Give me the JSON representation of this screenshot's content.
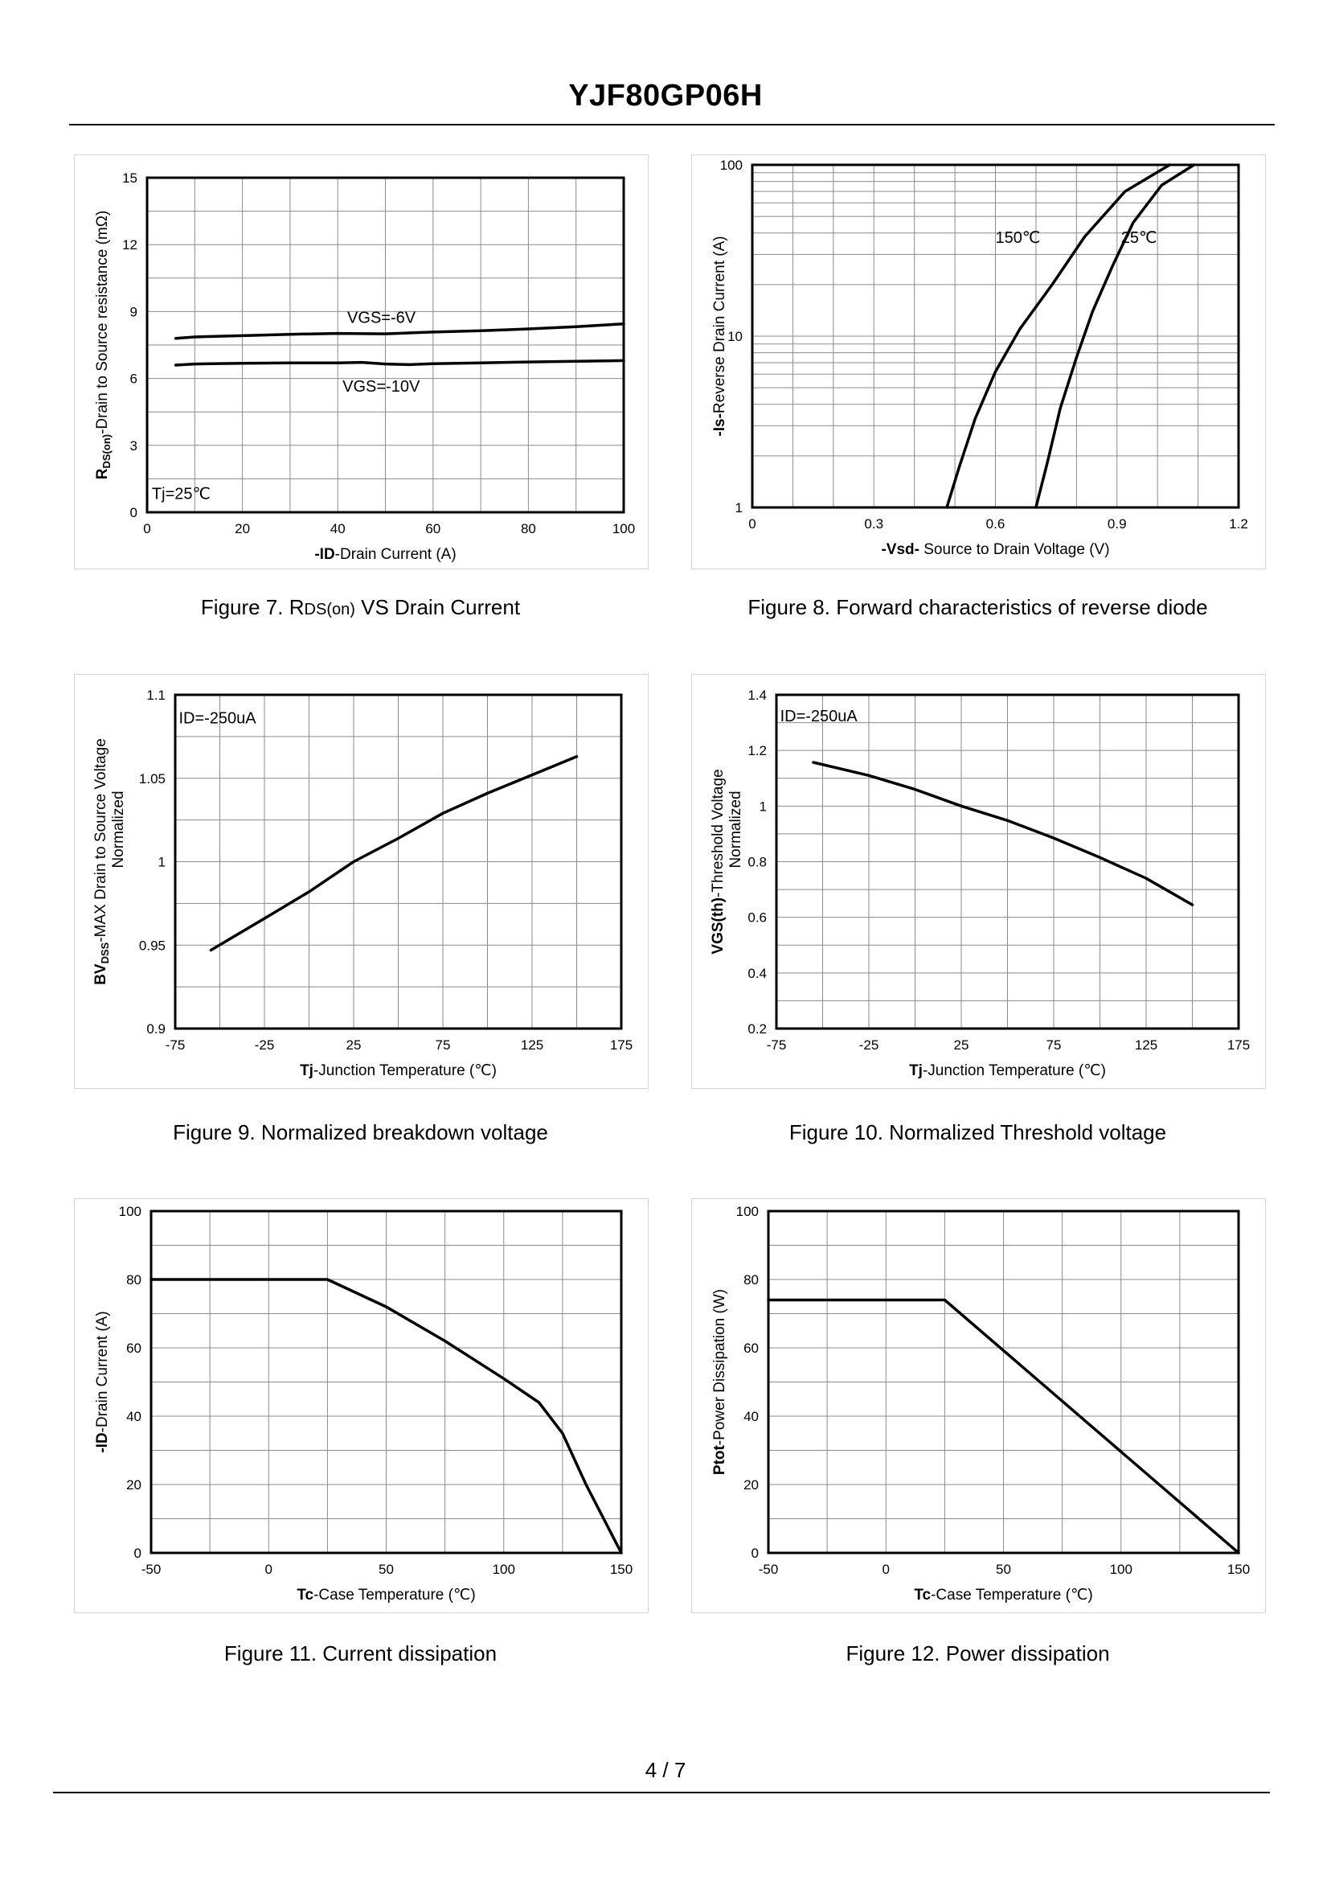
{
  "document": {
    "title": "YJF80GP06H",
    "page": "4 / 7"
  },
  "chart_data": [
    {
      "id": "fig7",
      "type": "line",
      "caption": [
        "Figure 7.  R",
        "DS(on)",
        " VS Drain Current"
      ],
      "xlabel_bold": "-ID",
      "xlabel": "-Drain Current  (A)",
      "ylabel_bold": "R",
      "ylabel_sub": "DS(on)",
      "ylabel": "-Drain to Source resistance (mΩ)",
      "xlim": [
        0,
        100
      ],
      "ylim": [
        0,
        15
      ],
      "xticks": [
        0,
        20,
        40,
        60,
        80,
        100
      ],
      "yticks": [
        0,
        3,
        6,
        9,
        12,
        15
      ],
      "xgrid": [
        0,
        10,
        20,
        30,
        40,
        50,
        60,
        70,
        80,
        90,
        100
      ],
      "ygrid": [
        0,
        1.5,
        3,
        4.5,
        6,
        7.5,
        9,
        10.5,
        12,
        13.5,
        15
      ],
      "series": [
        {
          "name": "VGS=-6V",
          "x": [
            6,
            10,
            20,
            30,
            40,
            50,
            60,
            70,
            80,
            90,
            100
          ],
          "y": [
            7.8,
            7.86,
            7.92,
            7.98,
            8.02,
            8.0,
            8.08,
            8.14,
            8.22,
            8.32,
            8.45
          ]
        },
        {
          "name": "VGS=-10V",
          "x": [
            6,
            10,
            20,
            30,
            40,
            45,
            50,
            55,
            60,
            70,
            80,
            90,
            100
          ],
          "y": [
            6.6,
            6.65,
            6.68,
            6.7,
            6.7,
            6.72,
            6.65,
            6.62,
            6.66,
            6.7,
            6.74,
            6.77,
            6.8
          ]
        }
      ],
      "annotations": [
        {
          "text": "VGS=-6V",
          "x": 42,
          "y": 8.5
        },
        {
          "text": "VGS=-10V",
          "x": 41,
          "y": 5.4
        },
        {
          "text": "Tj=25℃",
          "x": 1,
          "y": 0.6
        }
      ]
    },
    {
      "id": "fig8",
      "type": "line",
      "yscale": "log",
      "caption": [
        "Figure 8.  Forward characteristics of reverse diode",
        "",
        ""
      ],
      "xlabel_bold": "-Vsd-",
      "xlabel": " Source to Drain Voltage (V)",
      "ylabel_bold": "-Is-",
      "ylabel_sub": "",
      "ylabel": "Reverse  Drain Current (A)",
      "xlim": [
        0,
        1.2
      ],
      "ylim": [
        1,
        100
      ],
      "xticks": [
        0,
        0.3,
        0.6,
        0.9,
        1.2
      ],
      "yticks": [
        1,
        10,
        100
      ],
      "xgrid": [
        0,
        0.1,
        0.2,
        0.3,
        0.4,
        0.5,
        0.6,
        0.7,
        0.8,
        0.9,
        1.0,
        1.1,
        1.2
      ],
      "ygrid": [
        1,
        2,
        3,
        4,
        5,
        6,
        7,
        8,
        9,
        10,
        20,
        30,
        40,
        50,
        60,
        70,
        80,
        90,
        100
      ],
      "series": [
        {
          "name": "150℃",
          "x": [
            0.48,
            0.51,
            0.55,
            0.6,
            0.66,
            0.74,
            0.82,
            0.92,
            1.03
          ],
          "y": [
            1,
            1.7,
            3.3,
            6.2,
            11,
            20,
            38,
            70,
            100
          ]
        },
        {
          "name": "25℃",
          "x": [
            0.7,
            0.73,
            0.76,
            0.8,
            0.84,
            0.89,
            0.94,
            1.01,
            1.09
          ],
          "y": [
            1,
            1.9,
            3.8,
            7.5,
            14,
            26,
            46,
            76,
            100
          ]
        }
      ],
      "annotations": [
        {
          "text": "150℃",
          "x": 0.6,
          "y": 35
        },
        {
          "text": "25℃",
          "x": 0.91,
          "y": 35
        }
      ]
    },
    {
      "id": "fig9",
      "type": "line",
      "caption": [
        "Figure 9.  Normalized breakdown voltage",
        "",
        ""
      ],
      "xlabel_bold": "Tj",
      "xlabel": "-Junction  Temperature  (℃)",
      "ylabel_bold": "BV",
      "ylabel_sub": "DSS",
      "ylabel": "-MAX Drain to Source Voltage",
      "ylabel2": "Normalized",
      "xlim": [
        -75,
        175
      ],
      "ylim": [
        0.9,
        1.1
      ],
      "xticks": [
        -75,
        -25,
        25,
        75,
        125,
        175
      ],
      "yticks": [
        0.9,
        0.95,
        1,
        1.05,
        1.1
      ],
      "xgrid": [
        -75,
        -50,
        -25,
        0,
        25,
        50,
        75,
        100,
        125,
        150,
        175
      ],
      "ygrid": [
        0.9,
        0.925,
        0.95,
        0.975,
        1.0,
        1.025,
        1.05,
        1.075,
        1.1
      ],
      "series": [
        {
          "name": "BVDSS",
          "x": [
            -55,
            -25,
            0,
            25,
            50,
            75,
            100,
            125,
            150
          ],
          "y": [
            0.947,
            0.966,
            0.982,
            1.0,
            1.014,
            1.029,
            1.041,
            1.052,
            1.063
          ]
        }
      ],
      "annotations": [
        {
          "text": "ID=-250uA",
          "x": -73,
          "y": 1.083
        }
      ]
    },
    {
      "id": "fig10",
      "type": "line",
      "caption": [
        "Figure 10.  Normalized Threshold voltage",
        "",
        ""
      ],
      "xlabel_bold": "Tj",
      "xlabel": "-Junction  Temperature  (℃)",
      "ylabel_bold": "VGS(th)",
      "ylabel_sub": "",
      "ylabel": "-Threshold  Voltage",
      "ylabel2": "Normalized",
      "xlim": [
        -75,
        175
      ],
      "ylim": [
        0.2,
        1.4
      ],
      "xticks": [
        -75,
        -25,
        25,
        75,
        125,
        175
      ],
      "yticks": [
        0.2,
        0.4,
        0.6,
        0.8,
        1,
        1.2,
        1.4
      ],
      "xgrid": [
        -75,
        -50,
        -25,
        0,
        25,
        50,
        75,
        100,
        125,
        150,
        175
      ],
      "ygrid": [
        0.2,
        0.3,
        0.4,
        0.5,
        0.6,
        0.7,
        0.8,
        0.9,
        1.0,
        1.1,
        1.2,
        1.3,
        1.4
      ],
      "series": [
        {
          "name": "VGS(th)",
          "x": [
            -55,
            -25,
            0,
            25,
            50,
            75,
            100,
            125,
            150
          ],
          "y": [
            1.157,
            1.11,
            1.06,
            1.0,
            0.948,
            0.885,
            0.815,
            0.74,
            0.645
          ]
        }
      ],
      "annotations": [
        {
          "text": "ID=-250uA",
          "x": -73,
          "y": 1.305
        }
      ]
    },
    {
      "id": "fig11",
      "type": "line",
      "caption": [
        "Figure 11.  Current dissipation",
        "",
        ""
      ],
      "xlabel_bold": "Tc",
      "xlabel": "-Case Temperature (℃)",
      "ylabel_bold": "-ID",
      "ylabel_sub": "",
      "ylabel": "-Drain Current (A)",
      "xlim": [
        -50,
        150
      ],
      "ylim": [
        0,
        100
      ],
      "xticks": [
        -50,
        0,
        50,
        100,
        150
      ],
      "yticks": [
        0,
        20,
        40,
        60,
        80,
        100
      ],
      "xgrid": [
        -50,
        -25,
        0,
        25,
        50,
        75,
        100,
        125,
        150
      ],
      "ygrid": [
        0,
        10,
        20,
        30,
        40,
        50,
        60,
        70,
        80,
        90,
        100
      ],
      "series": [
        {
          "name": "ID",
          "x": [
            -50,
            25,
            50,
            75,
            100,
            115,
            125,
            135,
            150
          ],
          "y": [
            80,
            80,
            72,
            62,
            51,
            44,
            35,
            20,
            0
          ]
        }
      ],
      "annotations": []
    },
    {
      "id": "fig12",
      "type": "line",
      "caption": [
        "Figure 12.  Power dissipation",
        "",
        ""
      ],
      "xlabel_bold": "Tc",
      "xlabel": "-Case Temperature (℃)",
      "ylabel_bold": "Ptot",
      "ylabel_sub": "",
      "ylabel": "-Power Dissipation  (W)",
      "xlim": [
        -50,
        150
      ],
      "ylim": [
        0,
        100
      ],
      "xticks": [
        -50,
        0,
        50,
        100,
        150
      ],
      "yticks": [
        0,
        20,
        40,
        60,
        80,
        100
      ],
      "xgrid": [
        -50,
        -25,
        0,
        25,
        50,
        75,
        100,
        125,
        150
      ],
      "ygrid": [
        0,
        10,
        20,
        30,
        40,
        50,
        60,
        70,
        80,
        90,
        100
      ],
      "series": [
        {
          "name": "Ptot",
          "x": [
            -50,
            25,
            150
          ],
          "y": [
            74,
            74,
            0
          ]
        }
      ],
      "annotations": []
    }
  ]
}
